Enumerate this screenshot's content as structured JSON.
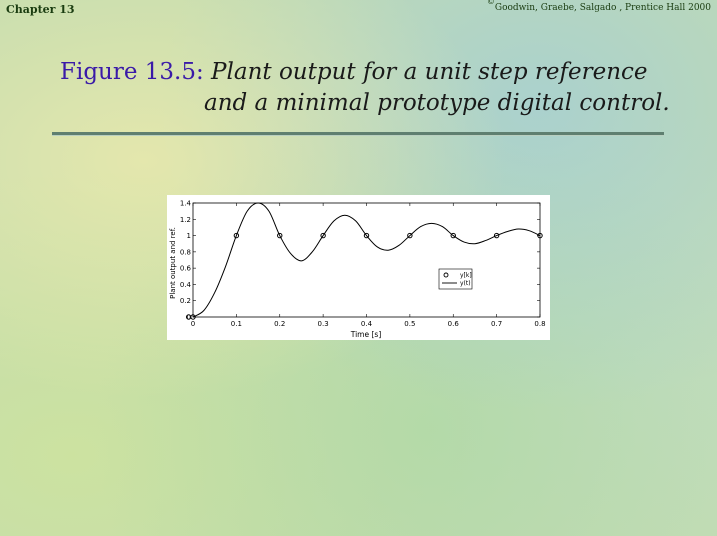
{
  "header": {
    "chapter": "Chapter 13",
    "credit": "Goodwin, Graebe, Salgado , Prentice Hall 2000",
    "copyright_symbol": "©"
  },
  "title": {
    "figure_label": "Figure 13.5:",
    "line1": "Plant output for a unit step reference",
    "line2": "and a minimal prototype digital control."
  },
  "chart_data": {
    "type": "line",
    "xlabel": "Time [s]",
    "ylabel": "Plant output and ref.",
    "xlim": [
      0,
      0.8
    ],
    "ylim": [
      0,
      1.4
    ],
    "xticks": [
      0,
      0.1,
      0.2,
      0.3,
      0.4,
      0.5,
      0.6,
      0.7,
      0.8
    ],
    "xtick_labels": [
      "0",
      "0.1",
      "0.2",
      "0.3",
      "0.4",
      "0.5",
      "0.6",
      "0.7",
      "0.8"
    ],
    "yticks": [
      0,
      0.2,
      0.4,
      0.6,
      0.8,
      1,
      1.2,
      1.4
    ],
    "ytick_labels": [
      "0",
      "0.2",
      "0.4",
      "0.6",
      "0.8",
      "1",
      "1.2",
      "1.4"
    ],
    "grid": false,
    "legend_position": "right",
    "series": [
      {
        "name": "y[k]",
        "style": "markers",
        "x": [
          -0.01,
          0,
          0.1,
          0.2,
          0.3,
          0.4,
          0.5,
          0.6,
          0.7,
          0.8
        ],
        "y": [
          0,
          0,
          1,
          1,
          1,
          1,
          1,
          1,
          1,
          1
        ]
      },
      {
        "name": "y(t)",
        "style": "line",
        "x": [
          0,
          0.025,
          0.05,
          0.075,
          0.1,
          0.125,
          0.15,
          0.175,
          0.2,
          0.225,
          0.25,
          0.275,
          0.3,
          0.325,
          0.35,
          0.375,
          0.4,
          0.425,
          0.45,
          0.475,
          0.5,
          0.525,
          0.55,
          0.575,
          0.6,
          0.625,
          0.65,
          0.675,
          0.7,
          0.725,
          0.75,
          0.775,
          0.8
        ],
        "y": [
          0,
          0.08,
          0.3,
          0.62,
          1,
          1.3,
          1.4,
          1.3,
          1,
          0.78,
          0.69,
          0.8,
          1,
          1.18,
          1.25,
          1.18,
          1,
          0.86,
          0.82,
          0.88,
          1,
          1.11,
          1.15,
          1.11,
          1,
          0.92,
          0.9,
          0.94,
          1,
          1.05,
          1.08,
          1.06,
          1
        ]
      }
    ]
  }
}
